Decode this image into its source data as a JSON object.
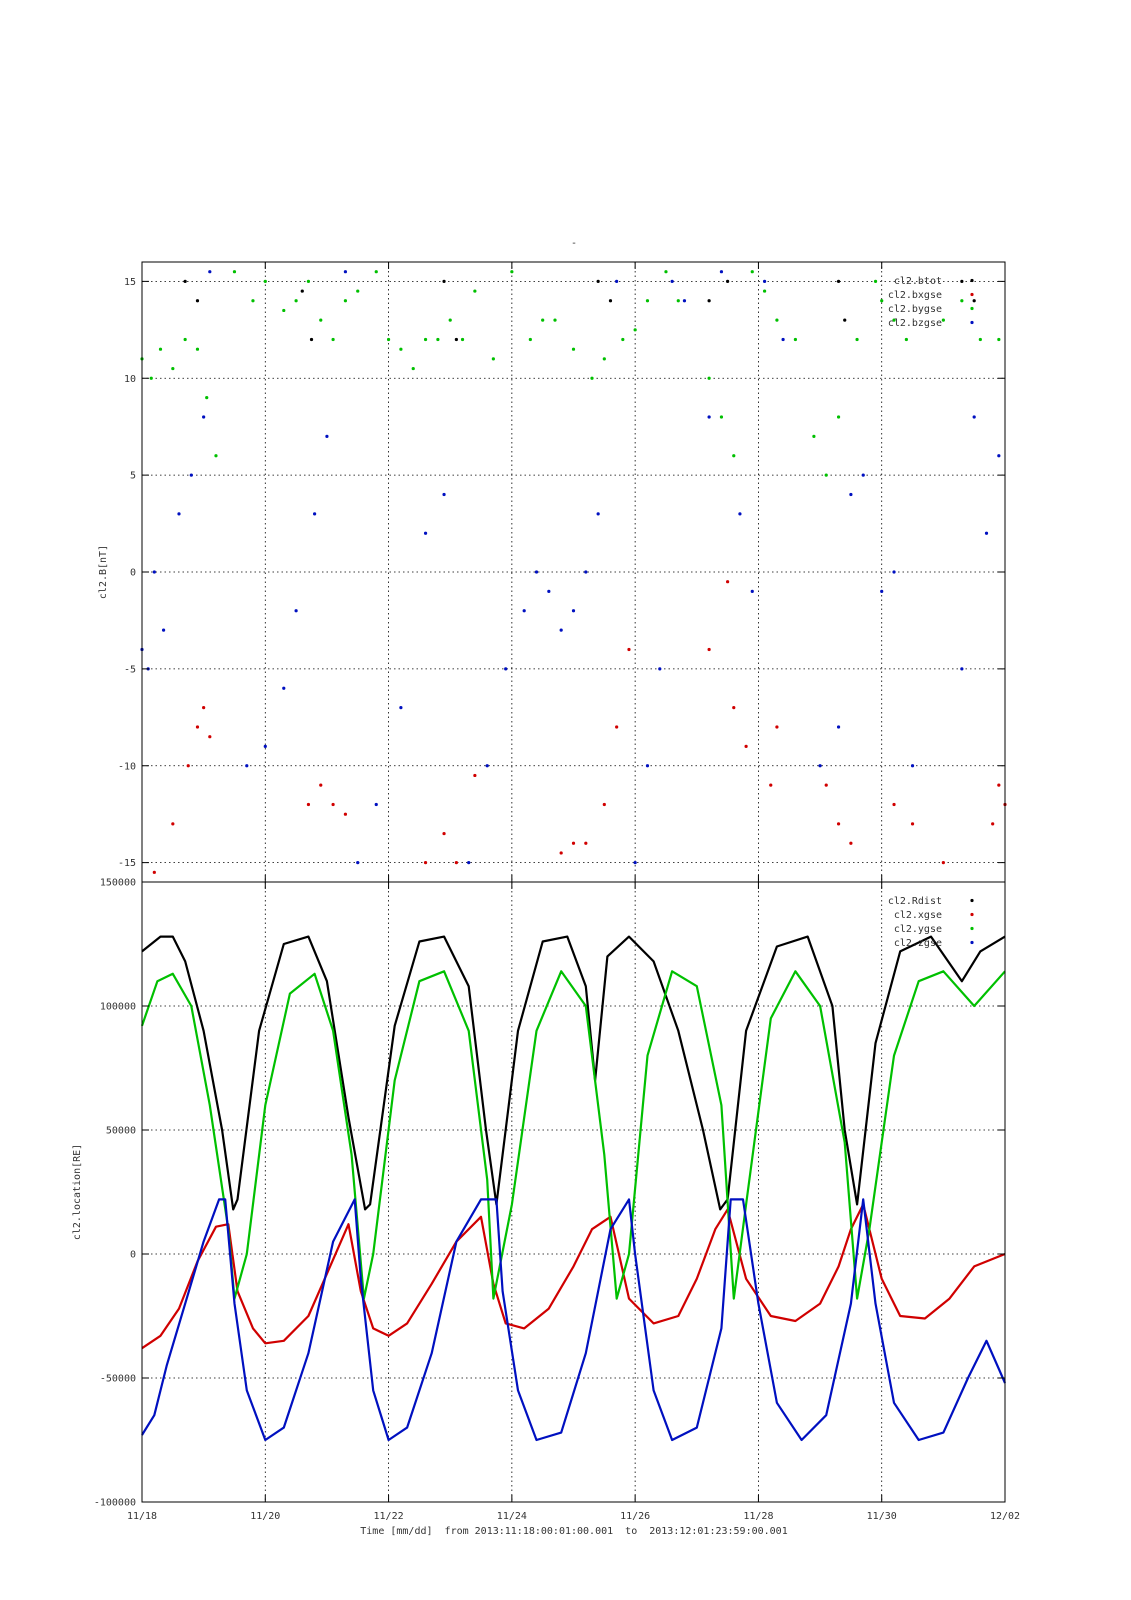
{
  "figure": {
    "title": "-",
    "xlabel": "Time [mm/dd]  from 2013:11:18:00:01:00.001  to  2013:12:01:23:59:00.001",
    "x_ticks": [
      "11/18",
      "11/20",
      "11/22",
      "11/24",
      "11/26",
      "11/28",
      "11/30",
      "12/02"
    ]
  },
  "chart_data": [
    {
      "type": "scatter",
      "ylabel": "cl2.B[nT]",
      "x_unit": "days since 2013-11-18",
      "xlim": [
        0,
        14
      ],
      "ylim": [
        -16,
        16
      ],
      "y_ticks": [
        "-15",
        "-10",
        "-5",
        "0",
        "5",
        "10",
        "15"
      ],
      "y_tick_values": [
        -15,
        -10,
        -5,
        0,
        5,
        10,
        15
      ],
      "grid": true,
      "legend_position": "top-right",
      "series": [
        {
          "name": "cl2.btot",
          "color": "#000000",
          "x": [
            0.7,
            0.9,
            2.6,
            2.75,
            4.9,
            5.1,
            7.4,
            7.6,
            9.2,
            9.5,
            11.3,
            11.4,
            13.3,
            13.5
          ],
          "y": [
            15,
            14,
            14.5,
            12,
            15,
            12,
            15,
            14,
            14,
            15,
            15,
            13,
            15,
            14
          ]
        },
        {
          "name": "cl2.bxgse",
          "color": "#d00000",
          "x": [
            0.2,
            0.5,
            0.75,
            0.9,
            1.0,
            1.1,
            2.7,
            2.9,
            3.1,
            3.3,
            4.6,
            4.9,
            5.1,
            5.4,
            6.8,
            7.0,
            7.2,
            7.5,
            7.7,
            7.9,
            9.2,
            9.5,
            9.6,
            9.8,
            10.2,
            10.3,
            11.1,
            11.3,
            11.5,
            12.2,
            12.5,
            13.0,
            13.8,
            13.9,
            14.0
          ],
          "y": [
            -15.5,
            -13,
            -10,
            -8,
            -7,
            -8.5,
            -12,
            -11,
            -12,
            -12.5,
            -15,
            -13.5,
            -15,
            -10.5,
            -14.5,
            -14,
            -14,
            -12,
            -8,
            -4,
            -4,
            -0.5,
            -7,
            -9,
            -11,
            -8,
            -11,
            -13,
            -14,
            -12,
            -13,
            -15,
            -13,
            -11,
            -12
          ]
        },
        {
          "name": "cl2.bygse",
          "color": "#00c000",
          "x": [
            0.0,
            0.15,
            0.3,
            0.5,
            0.7,
            0.9,
            1.05,
            1.2,
            1.5,
            1.8,
            2.0,
            2.3,
            2.5,
            2.7,
            2.9,
            3.1,
            3.3,
            3.5,
            3.8,
            4.0,
            4.2,
            4.4,
            4.6,
            4.8,
            5.0,
            5.2,
            5.4,
            5.7,
            6.0,
            6.3,
            6.5,
            6.7,
            7.0,
            7.3,
            7.5,
            7.8,
            8.0,
            8.2,
            8.5,
            8.7,
            9.2,
            9.4,
            9.6,
            9.9,
            10.1,
            10.3,
            10.6,
            10.9,
            11.1,
            11.3,
            11.6,
            11.9,
            12.0,
            12.2,
            12.4,
            13.0,
            13.3,
            13.6,
            13.9
          ],
          "y": [
            11,
            10,
            11.5,
            10.5,
            12,
            11.5,
            9,
            6,
            15.5,
            14,
            15,
            13.5,
            14,
            15,
            13,
            12,
            14,
            14.5,
            15.5,
            12,
            11.5,
            10.5,
            12,
            12,
            13,
            12,
            14.5,
            11,
            15.5,
            12,
            13,
            13,
            11.5,
            10,
            11,
            12,
            12.5,
            14,
            15.5,
            14,
            10,
            8,
            6,
            15.5,
            14.5,
            13,
            12,
            7,
            5,
            8,
            12,
            15,
            14,
            13,
            12,
            13,
            14,
            12,
            12
          ]
        },
        {
          "name": "cl2.bzgse",
          "color": "#0010c0",
          "x": [
            0.0,
            0.1,
            0.2,
            0.35,
            0.6,
            0.8,
            1.0,
            1.1,
            1.7,
            2.0,
            2.3,
            2.5,
            2.8,
            3.0,
            3.3,
            3.5,
            3.8,
            4.2,
            4.6,
            4.9,
            5.3,
            5.6,
            5.9,
            6.2,
            6.4,
            6.6,
            6.8,
            7.0,
            7.2,
            7.4,
            7.7,
            8.0,
            8.2,
            8.4,
            8.6,
            8.8,
            9.2,
            9.4,
            9.7,
            9.9,
            10.1,
            10.4,
            11.0,
            11.3,
            11.5,
            11.7,
            12.0,
            12.2,
            12.5,
            13.3,
            13.5,
            13.7,
            13.9
          ],
          "y": [
            -4,
            -5,
            0,
            -3,
            3,
            5,
            8,
            15.5,
            -10,
            -9,
            -6,
            -2,
            3,
            7,
            15.5,
            -15,
            -12,
            -7,
            2,
            4,
            -15,
            -10,
            -5,
            -2,
            0,
            -1,
            -3,
            -2,
            0,
            3,
            15,
            -15,
            -10,
            -5,
            15,
            14,
            8,
            15.5,
            3,
            -1,
            15,
            12,
            -10,
            -8,
            4,
            5,
            -1,
            0,
            -10,
            -5,
            8,
            2,
            6
          ]
        }
      ]
    },
    {
      "type": "line",
      "ylabel": "cl2.location[RE]",
      "x_unit": "days since 2013-11-18",
      "xlim": [
        0,
        14
      ],
      "ylim": [
        -100000,
        150000
      ],
      "y_ticks": [
        "-100000",
        "-50000",
        "0",
        "50000",
        "100000",
        "150000"
      ],
      "y_tick_values": [
        -100000,
        -50000,
        0,
        50000,
        100000,
        150000
      ],
      "grid": true,
      "legend_position": "top-right",
      "series": [
        {
          "name": "cl2.Rdist",
          "color": "#000000",
          "x": [
            0.0,
            0.3,
            0.5,
            0.7,
            1.0,
            1.3,
            1.48,
            1.55,
            1.9,
            2.3,
            2.7,
            3.0,
            3.35,
            3.62,
            3.7,
            4.1,
            4.5,
            4.9,
            5.3,
            5.58,
            5.75,
            6.1,
            6.5,
            6.9,
            7.2,
            7.35,
            7.55,
            7.9,
            8.3,
            8.7,
            9.1,
            9.38,
            9.5,
            9.8,
            10.3,
            10.8,
            11.2,
            11.4,
            11.6,
            11.9,
            12.3,
            12.8,
            13.3,
            13.6,
            14.0
          ],
          "y": [
            122000,
            128000,
            128000,
            118000,
            90000,
            50000,
            18000,
            22000,
            90000,
            125000,
            128000,
            110000,
            55000,
            18000,
            20000,
            92000,
            126000,
            128000,
            108000,
            50000,
            20000,
            90000,
            126000,
            128000,
            108000,
            70000,
            120000,
            128000,
            118000,
            90000,
            50000,
            18000,
            22000,
            90000,
            124000,
            128000,
            100000,
            50000,
            20000,
            85000,
            122000,
            128000,
            110000,
            122000,
            128000
          ]
        },
        {
          "name": "cl2.xgse",
          "color": "#d00000",
          "x": [
            0.0,
            0.3,
            0.6,
            0.9,
            1.2,
            1.4,
            1.55,
            1.8,
            2.0,
            2.3,
            2.7,
            3.0,
            3.35,
            3.55,
            3.75,
            4.0,
            4.3,
            4.7,
            5.1,
            5.5,
            5.7,
            5.9,
            6.2,
            6.6,
            7.0,
            7.3,
            7.6,
            7.9,
            8.3,
            8.7,
            9.0,
            9.3,
            9.5,
            9.8,
            10.2,
            10.6,
            11.0,
            11.3,
            11.5,
            11.7,
            12.0,
            12.3,
            12.7,
            13.1,
            13.5,
            14.0
          ],
          "y": [
            -38000,
            -33000,
            -22000,
            -3000,
            11000,
            12000,
            -15000,
            -30000,
            -36000,
            -35000,
            -25000,
            -8000,
            12000,
            -15000,
            -30000,
            -33000,
            -28000,
            -12000,
            5000,
            15000,
            -12000,
            -28000,
            -30000,
            -22000,
            -5000,
            10000,
            15000,
            -18000,
            -28000,
            -25000,
            -10000,
            10000,
            18000,
            -10000,
            -25000,
            -27000,
            -20000,
            -5000,
            10000,
            20000,
            -10000,
            -25000,
            -26000,
            -18000,
            -5000,
            0
          ]
        },
        {
          "name": "cl2.ygse",
          "color": "#00c000",
          "x": [
            0.0,
            0.25,
            0.5,
            0.8,
            1.1,
            1.4,
            1.5,
            1.7,
            2.0,
            2.4,
            2.8,
            3.1,
            3.4,
            3.6,
            3.75,
            4.1,
            4.5,
            4.9,
            5.3,
            5.6,
            5.7,
            6.0,
            6.4,
            6.8,
            7.2,
            7.5,
            7.7,
            7.9,
            8.2,
            8.6,
            9.0,
            9.4,
            9.6,
            9.8,
            10.2,
            10.6,
            11.0,
            11.4,
            11.6,
            11.8,
            12.2,
            12.6,
            13.0,
            13.5,
            14.0
          ],
          "y": [
            92000,
            110000,
            113000,
            100000,
            60000,
            10000,
            -18000,
            0,
            60000,
            105000,
            113000,
            90000,
            40000,
            -18000,
            0,
            70000,
            110000,
            114000,
            90000,
            30000,
            -18000,
            20000,
            90000,
            114000,
            100000,
            40000,
            -18000,
            0,
            80000,
            114000,
            108000,
            60000,
            -18000,
            20000,
            95000,
            114000,
            100000,
            45000,
            -18000,
            10000,
            80000,
            110000,
            114000,
            100000,
            114000
          ]
        },
        {
          "name": "cl2.zgse",
          "color": "#0010c0",
          "x": [
            0.0,
            0.2,
            0.4,
            0.7,
            1.0,
            1.25,
            1.35,
            1.5,
            1.7,
            2.0,
            2.3,
            2.7,
            3.1,
            3.45,
            3.55,
            3.75,
            4.0,
            4.3,
            4.7,
            5.1,
            5.5,
            5.75,
            5.85,
            6.1,
            6.4,
            6.8,
            7.2,
            7.6,
            7.9,
            8.0,
            8.3,
            8.6,
            9.0,
            9.4,
            9.55,
            9.75,
            10.0,
            10.3,
            10.7,
            11.1,
            11.5,
            11.7,
            11.9,
            12.2,
            12.6,
            13.0,
            13.4,
            13.7,
            14.0
          ],
          "y": [
            -73000,
            -65000,
            -45000,
            -20000,
            5000,
            22000,
            22000,
            -20000,
            -55000,
            -75000,
            -70000,
            -40000,
            5000,
            22000,
            -10000,
            -55000,
            -75000,
            -70000,
            -40000,
            5000,
            22000,
            22000,
            -15000,
            -55000,
            -75000,
            -72000,
            -40000,
            10000,
            22000,
            0,
            -55000,
            -75000,
            -70000,
            -30000,
            22000,
            22000,
            -20000,
            -60000,
            -75000,
            -65000,
            -20000,
            22000,
            -20000,
            -60000,
            -75000,
            -72000,
            -50000,
            -35000,
            -52000
          ]
        }
      ]
    }
  ]
}
